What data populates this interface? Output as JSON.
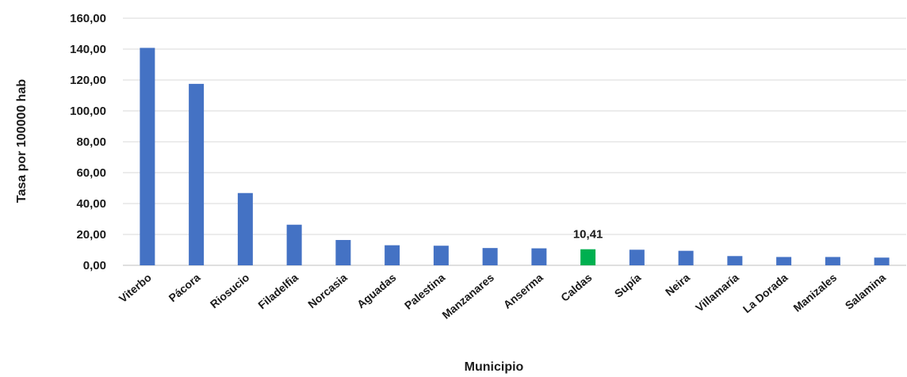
{
  "chart_data": {
    "type": "bar",
    "xlabel": "Municipio",
    "ylabel": "Tasa por 100000 hab",
    "ylim": [
      0,
      160
    ],
    "y_ticks": [
      "0,00",
      "20,00",
      "40,00",
      "60,00",
      "80,00",
      "100,00",
      "120,00",
      "140,00",
      "160,00"
    ],
    "grid": true,
    "categories": [
      "Viterbo",
      "Pácora",
      "Riosucio",
      "Filadelfia",
      "Norcasia",
      "Aguadas",
      "Palestina",
      "Manzanares",
      "Anserma",
      "Caldas",
      "Supía",
      "Neira",
      "Villamaría",
      "La Dorada",
      "Manizales",
      "Salamina"
    ],
    "values": [
      140.8,
      117.5,
      46.8,
      26.3,
      16.4,
      13.0,
      12.7,
      11.2,
      11.0,
      10.41,
      10.1,
      9.4,
      6.0,
      5.4,
      5.4,
      5.0
    ],
    "highlight_category": "Caldas",
    "highlight_label": "10,41",
    "colors": {
      "bar": "#4472C4",
      "highlight": "#00B050"
    }
  }
}
